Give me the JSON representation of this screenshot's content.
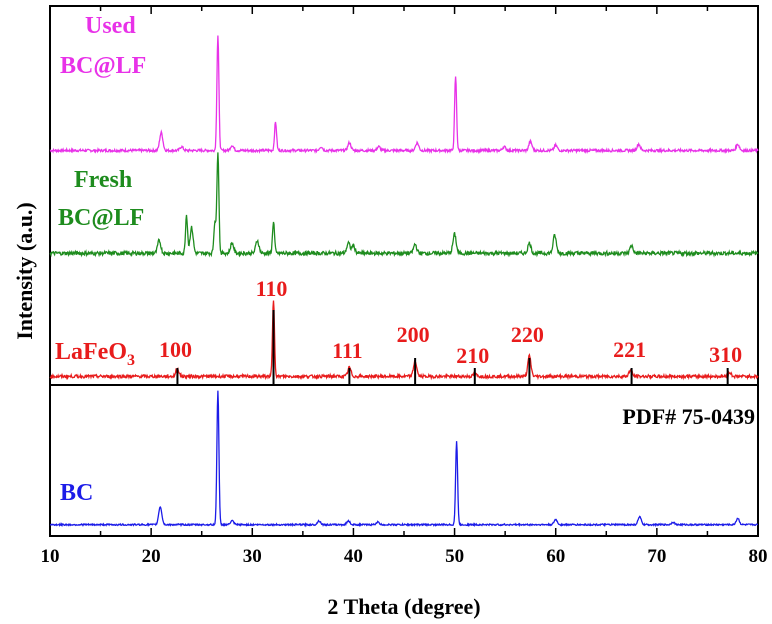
{
  "chart_data": {
    "type": "line",
    "title": "",
    "xlabel": "2 Theta (degree)",
    "ylabel": "Intensity (a.u.)",
    "xlim": [
      10,
      80
    ],
    "x_ticks": [
      10,
      20,
      30,
      40,
      50,
      60,
      70,
      80
    ],
    "grid": false,
    "legend": "inline labels",
    "series": [
      {
        "name": "Used BC@LF",
        "label_lines": [
          "Used",
          "BC@LF"
        ],
        "color": "#e832e8",
        "baseline": 2.95,
        "noise": 0.01,
        "peaks": [
          [
            21.0,
            0.14
          ],
          [
            23.0,
            0.03
          ],
          [
            26.6,
            0.9
          ],
          [
            28.0,
            0.04
          ],
          [
            32.3,
            0.22
          ],
          [
            36.8,
            0.03
          ],
          [
            39.6,
            0.06
          ],
          [
            42.5,
            0.03
          ],
          [
            46.3,
            0.06
          ],
          [
            50.1,
            0.58
          ],
          [
            54.9,
            0.03
          ],
          [
            57.5,
            0.07
          ],
          [
            60.0,
            0.04
          ],
          [
            68.2,
            0.05
          ],
          [
            78.0,
            0.05
          ]
        ]
      },
      {
        "name": "Fresh BC@LF",
        "label_lines": [
          "Fresh",
          "BC@LF"
        ],
        "color": "#1e8c1e",
        "baseline": 1.95,
        "noise": 0.015,
        "peaks": [
          [
            20.8,
            0.1
          ],
          [
            23.5,
            0.3
          ],
          [
            24.0,
            0.2
          ],
          [
            26.6,
            0.8
          ],
          [
            26.3,
            0.25
          ],
          [
            28.0,
            0.08
          ],
          [
            30.5,
            0.1
          ],
          [
            32.1,
            0.25
          ],
          [
            39.5,
            0.08
          ],
          [
            40.0,
            0.06
          ],
          [
            46.1,
            0.07
          ],
          [
            50.0,
            0.15
          ],
          [
            57.4,
            0.08
          ],
          [
            59.9,
            0.14
          ],
          [
            67.5,
            0.06
          ]
        ]
      },
      {
        "name": "LaFeO3",
        "label_main": "LaFeO",
        "label_sub": "3",
        "color": "#e81c1c",
        "baseline": 1.0,
        "noise": 0.012,
        "peaks": [
          [
            22.6,
            0.06
          ],
          [
            32.1,
            0.6
          ],
          [
            39.6,
            0.07
          ],
          [
            46.1,
            0.12
          ],
          [
            52.0,
            0.02
          ],
          [
            57.4,
            0.16
          ],
          [
            67.4,
            0.05
          ],
          [
            77.2,
            0.03
          ]
        ]
      },
      {
        "name": "BC",
        "label_lines": [
          "BC"
        ],
        "color": "#1c1ce8",
        "baseline": 0.0,
        "noise": 0.006,
        "peaks": [
          [
            20.9,
            0.14
          ],
          [
            26.6,
            1.05
          ],
          [
            28.0,
            0.03
          ],
          [
            36.6,
            0.03
          ],
          [
            39.5,
            0.03
          ],
          [
            42.4,
            0.02
          ],
          [
            50.2,
            0.65
          ],
          [
            60.0,
            0.04
          ],
          [
            68.3,
            0.06
          ],
          [
            71.6,
            0.02
          ],
          [
            78.0,
            0.05
          ]
        ]
      }
    ],
    "reference": {
      "name": "PDF# 75-0439",
      "sticks": [
        {
          "x": 22.6,
          "hkl": "100"
        },
        {
          "x": 32.1,
          "hkl": "110"
        },
        {
          "x": 39.6,
          "hkl": "111"
        },
        {
          "x": 46.1,
          "hkl": "200"
        },
        {
          "x": 52.0,
          "hkl": "210"
        },
        {
          "x": 57.4,
          "hkl": "220"
        },
        {
          "x": 67.5,
          "hkl": "221"
        },
        {
          "x": 77.0,
          "hkl": "310"
        }
      ]
    },
    "hkl_color": "#e81c1c"
  }
}
